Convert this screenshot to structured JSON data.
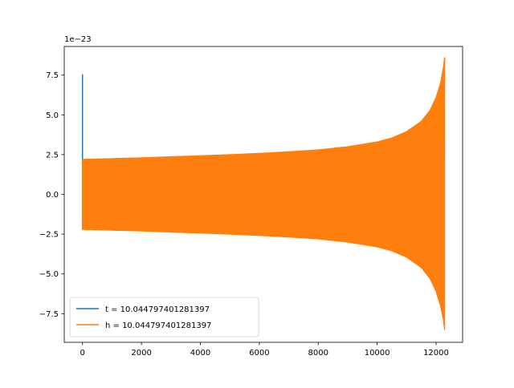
{
  "chart_data": {
    "type": "line",
    "offset_label": "1e−23",
    "xlim": [
      -620,
      12900
    ],
    "ylim": [
      -9.3,
      9.3
    ],
    "x_ticks": [
      {
        "value": 0,
        "label": "0"
      },
      {
        "value": 2000,
        "label": "2000"
      },
      {
        "value": 4000,
        "label": "4000"
      },
      {
        "value": 6000,
        "label": "6000"
      },
      {
        "value": 8000,
        "label": "8000"
      },
      {
        "value": 10000,
        "label": "10000"
      },
      {
        "value": 12000,
        "label": "12000"
      }
    ],
    "y_ticks": [
      {
        "value": 7.5,
        "label": "7.5"
      },
      {
        "value": 5.0,
        "label": "5.0"
      },
      {
        "value": 2.5,
        "label": "2.5"
      },
      {
        "value": 0.0,
        "label": "0.0"
      },
      {
        "value": -2.5,
        "label": "−2.5"
      },
      {
        "value": -5.0,
        "label": "−5.0"
      },
      {
        "value": -7.5,
        "label": "−7.5"
      }
    ],
    "legend_position": "lower-left",
    "series": [
      {
        "name": "t = 10.044797401281397",
        "color": "#1f77b4",
        "x": [
          0,
          0,
          0,
          0,
          0
        ],
        "y": [
          0.4,
          7.55,
          2.2,
          -2.2,
          0.4
        ]
      },
      {
        "name": "h = 10.044797401281397",
        "color": "#ff7f0e",
        "envelope": {
          "x": [
            0,
            1000,
            2000,
            3000,
            4000,
            5000,
            6000,
            7000,
            8000,
            9000,
            10000,
            10500,
            11000,
            11500,
            11800,
            12000,
            12150,
            12250,
            12290
          ],
          "upper": [
            2.2,
            2.25,
            2.3,
            2.37,
            2.43,
            2.5,
            2.58,
            2.68,
            2.8,
            3.0,
            3.3,
            3.55,
            3.95,
            4.6,
            5.3,
            6.1,
            7.0,
            8.0,
            8.6
          ],
          "lower": [
            -2.2,
            -2.25,
            -2.3,
            -2.37,
            -2.43,
            -2.5,
            -2.58,
            -2.68,
            -2.8,
            -3.0,
            -3.3,
            -3.55,
            -3.95,
            -4.6,
            -5.3,
            -6.1,
            -7.0,
            -7.9,
            -8.5
          ]
        }
      }
    ]
  }
}
